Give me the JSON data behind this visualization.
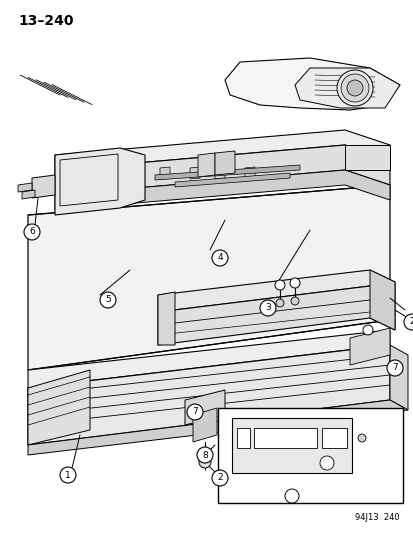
{
  "title": "13–240",
  "footer": "94J13  240",
  "bg": "#ffffff",
  "lc": "#000000",
  "fig_w": 4.14,
  "fig_h": 5.33,
  "dpi": 100
}
